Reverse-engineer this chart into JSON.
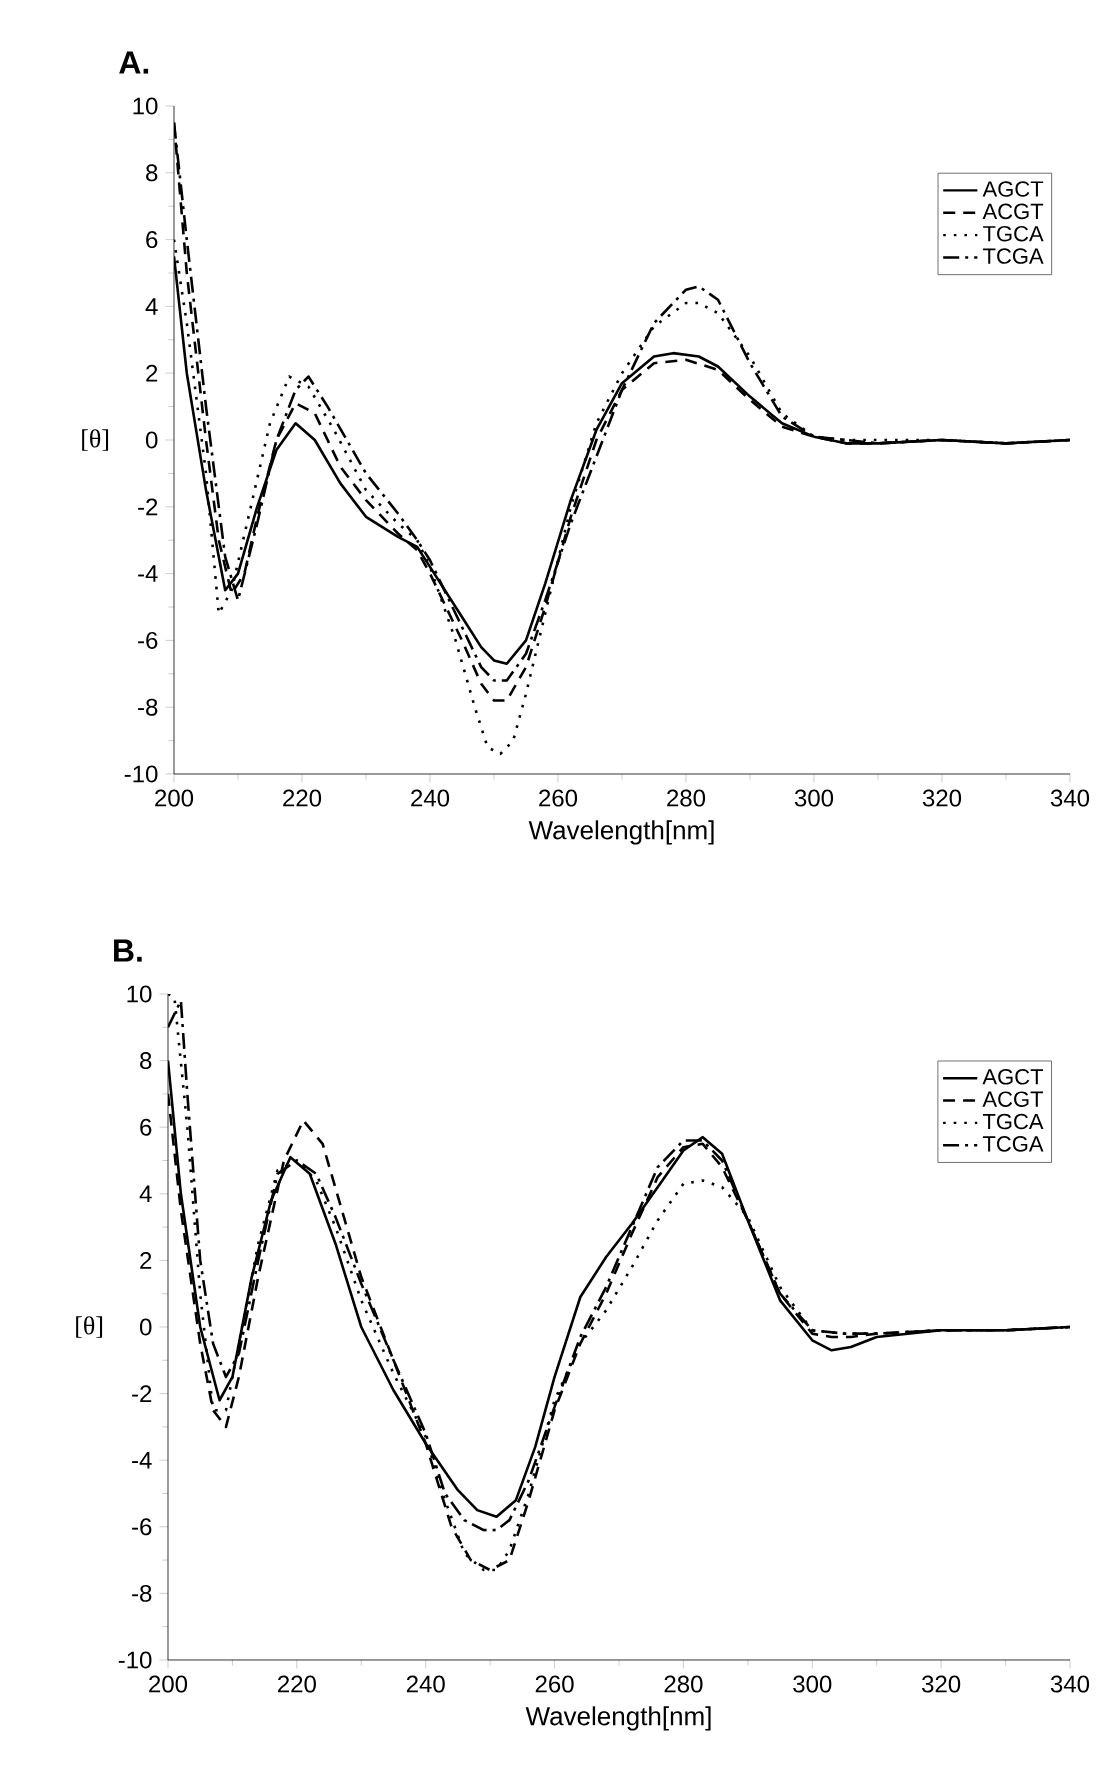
{
  "chart_data": [
    {
      "type": "line",
      "title": "A.",
      "xlabel": "Wavelength[nm]",
      "ylabel": "[θ]",
      "xlim": [
        200,
        340
      ],
      "ylim": [
        -10,
        10
      ],
      "xticks": [
        200,
        220,
        240,
        260,
        280,
        300,
        320,
        340
      ],
      "yticks": [
        -10,
        -8,
        -6,
        -4,
        -2,
        0,
        2,
        4,
        6,
        8,
        10
      ],
      "legend": "top right",
      "series": [
        {
          "name": "AGCT",
          "color": "#000000",
          "line_style": "solid",
          "x": [
            200,
            202,
            205,
            208,
            210,
            213,
            216,
            219,
            222,
            226,
            230,
            235,
            238,
            240,
            245,
            248,
            250,
            252,
            255,
            258,
            262,
            266,
            270,
            275,
            278,
            282,
            285,
            290,
            295,
            300,
            305,
            310,
            320,
            330,
            340
          ],
          "values": [
            5.5,
            2,
            -1.5,
            -4.5,
            -4,
            -2,
            -0.3,
            0.5,
            0,
            -1.3,
            -2.3,
            -2.9,
            -3.2,
            -3.8,
            -5.3,
            -6.2,
            -6.6,
            -6.7,
            -6,
            -4.3,
            -1.8,
            0.3,
            1.7,
            2.5,
            2.6,
            2.5,
            2.2,
            1.3,
            0.5,
            0.1,
            -0.1,
            -0.1,
            0,
            -0.1,
            0
          ]
        },
        {
          "name": "ACGT",
          "color": "#000000",
          "line_style": "dashed",
          "x": [
            200,
            202,
            205,
            207,
            209,
            211,
            213,
            216,
            219,
            222,
            226,
            230,
            235,
            238,
            240,
            245,
            248,
            250,
            252,
            255,
            258,
            262,
            266,
            270,
            275,
            280,
            285,
            290,
            295,
            300,
            305,
            310,
            320,
            330,
            340
          ],
          "values": [
            9.5,
            5,
            0,
            -3,
            -4.6,
            -4,
            -2.3,
            0,
            1.1,
            0.8,
            -0.8,
            -1.8,
            -2.8,
            -3.3,
            -4,
            -6,
            -7.3,
            -7.8,
            -7.8,
            -6.8,
            -5,
            -2.3,
            0,
            1.5,
            2.3,
            2.4,
            2.1,
            1.2,
            0.4,
            0.1,
            -0.1,
            -0.1,
            0,
            -0.1,
            0
          ]
        },
        {
          "name": "TGCA",
          "color": "#000000",
          "line_style": "dotted",
          "x": [
            200,
            202,
            205,
            207,
            209,
            212,
            215,
            218,
            221,
            225,
            230,
            235,
            238,
            240,
            244,
            247,
            249,
            251,
            253,
            255,
            258,
            262,
            266,
            270,
            275,
            280,
            282,
            285,
            290,
            295,
            300,
            305,
            310,
            320,
            330,
            340
          ],
          "values": [
            6,
            3.5,
            -1,
            -5.2,
            -4.5,
            -2,
            0.5,
            1.9,
            1.6,
            0.3,
            -1.5,
            -2.5,
            -3,
            -3.8,
            -6,
            -8,
            -9.2,
            -9.4,
            -9,
            -7.6,
            -5.2,
            -2,
            0.5,
            2,
            3.4,
            4.1,
            4.1,
            3.8,
            2.5,
            0.8,
            0.1,
            0,
            0,
            0,
            -0.1,
            0
          ]
        },
        {
          "name": "TCGA",
          "color": "#000000",
          "line_style": "dashdot",
          "x": [
            200,
            202,
            205,
            208,
            210,
            213,
            216,
            219,
            221,
            224,
            227,
            230,
            235,
            238,
            240,
            245,
            248,
            250,
            252,
            255,
            258,
            262,
            266,
            270,
            275,
            280,
            282,
            285,
            290,
            295,
            300,
            305,
            310,
            320,
            330,
            340
          ],
          "values": [
            9.5,
            6,
            1,
            -3.5,
            -4.8,
            -2.5,
            0,
            1.5,
            1.9,
            1,
            0,
            -1,
            -2.2,
            -3,
            -3.6,
            -5.6,
            -6.8,
            -7.2,
            -7.2,
            -6.4,
            -4.8,
            -2.5,
            -0.5,
            1.5,
            3.5,
            4.5,
            4.6,
            4.2,
            2.3,
            0.7,
            0.1,
            0,
            -0.1,
            0,
            -0.1,
            0
          ]
        }
      ]
    },
    {
      "type": "line",
      "title": "B.",
      "xlabel": "Wavelength[nm]",
      "ylabel": "[θ]",
      "xlim": [
        200,
        340
      ],
      "ylim": [
        -10,
        10
      ],
      "xticks": [
        200,
        220,
        240,
        260,
        280,
        300,
        320,
        340
      ],
      "yticks": [
        -10,
        -8,
        -6,
        -4,
        -2,
        0,
        2,
        4,
        6,
        8,
        10
      ],
      "legend": "top right",
      "series": [
        {
          "name": "AGCT",
          "color": "#000000",
          "line_style": "solid",
          "x": [
            200,
            202,
            205,
            208,
            210,
            213,
            216,
            219,
            222,
            226,
            230,
            235,
            240,
            245,
            248,
            251,
            254,
            257,
            260,
            264,
            268,
            272,
            276,
            280,
            283,
            286,
            290,
            295,
            300,
            303,
            306,
            310,
            320,
            330,
            340
          ],
          "values": [
            8,
            4,
            0,
            -2.2,
            -1.5,
            1.5,
            3.8,
            5.1,
            4.6,
            2.5,
            0,
            -1.9,
            -3.5,
            -4.9,
            -5.5,
            -5.7,
            -5.2,
            -3.6,
            -1.5,
            0.9,
            2.1,
            3.1,
            4.2,
            5.3,
            5.7,
            5.2,
            3.2,
            0.8,
            -0.4,
            -0.7,
            -0.6,
            -0.3,
            -0.1,
            -0.1,
            0
          ]
        },
        {
          "name": "ACGT",
          "color": "#000000",
          "line_style": "dashed",
          "x": [
            200,
            202,
            205,
            207,
            209,
            211,
            214,
            218,
            221,
            224,
            227,
            230,
            235,
            240,
            244,
            247,
            250,
            253,
            256,
            260,
            264,
            268,
            272,
            276,
            280,
            283,
            286,
            290,
            295,
            300,
            303,
            306,
            310,
            320,
            330,
            340
          ],
          "values": [
            7,
            3.5,
            -0.5,
            -2.5,
            -3,
            -1.5,
            1.5,
            5,
            6.2,
            5.5,
            3.5,
            1.5,
            -1,
            -3.5,
            -6,
            -7,
            -7.3,
            -7,
            -5.2,
            -2.5,
            -0.5,
            1,
            2.8,
            4.5,
            5.4,
            5.5,
            4.8,
            3.2,
            1,
            -0.2,
            -0.3,
            -0.3,
            -0.2,
            -0.1,
            -0.1,
            0
          ]
        },
        {
          "name": "TGCA",
          "color": "#000000",
          "line_style": "dotted",
          "x": [
            200,
            201,
            203,
            205,
            207,
            209,
            211,
            214,
            217,
            220,
            223,
            226,
            230,
            235,
            240,
            243,
            246,
            249,
            251,
            253,
            256,
            260,
            264,
            268,
            272,
            276,
            280,
            283,
            286,
            290,
            295,
            300,
            305,
            310,
            320,
            330,
            340
          ],
          "values": [
            10,
            9.9,
            6,
            1,
            -2.5,
            -2.5,
            -0.5,
            2.5,
            4.7,
            5,
            4.4,
            3,
            0.8,
            -1.4,
            -3.3,
            -5.2,
            -6.8,
            -7.3,
            -7.3,
            -6.7,
            -5,
            -2.2,
            -0.5,
            0.5,
            1.8,
            3.2,
            4.3,
            4.4,
            4.2,
            3.3,
            1.2,
            -0.1,
            -0.2,
            -0.2,
            -0.1,
            -0.1,
            0
          ]
        },
        {
          "name": "TCGA",
          "color": "#000000",
          "line_style": "dashdot",
          "x": [
            200,
            202,
            203,
            205,
            207,
            209,
            211,
            214,
            217,
            220,
            223,
            226,
            230,
            235,
            240,
            243,
            246,
            249,
            251,
            253,
            256,
            260,
            264,
            268,
            272,
            276,
            280,
            283,
            286,
            290,
            295,
            300,
            305,
            310,
            320,
            330,
            340
          ],
          "values": [
            9,
            9.8,
            7,
            2,
            -0.5,
            -1.5,
            -0.8,
            2,
            4.6,
            5,
            4.6,
            3.3,
            1.3,
            -1,
            -3.2,
            -5,
            -5.8,
            -6.1,
            -6.1,
            -5.8,
            -4.6,
            -2.4,
            -0.3,
            1.2,
            3,
            4.8,
            5.6,
            5.6,
            5,
            3.2,
            1,
            -0.1,
            -0.2,
            -0.2,
            -0.1,
            -0.1,
            0
          ]
        }
      ]
    }
  ]
}
